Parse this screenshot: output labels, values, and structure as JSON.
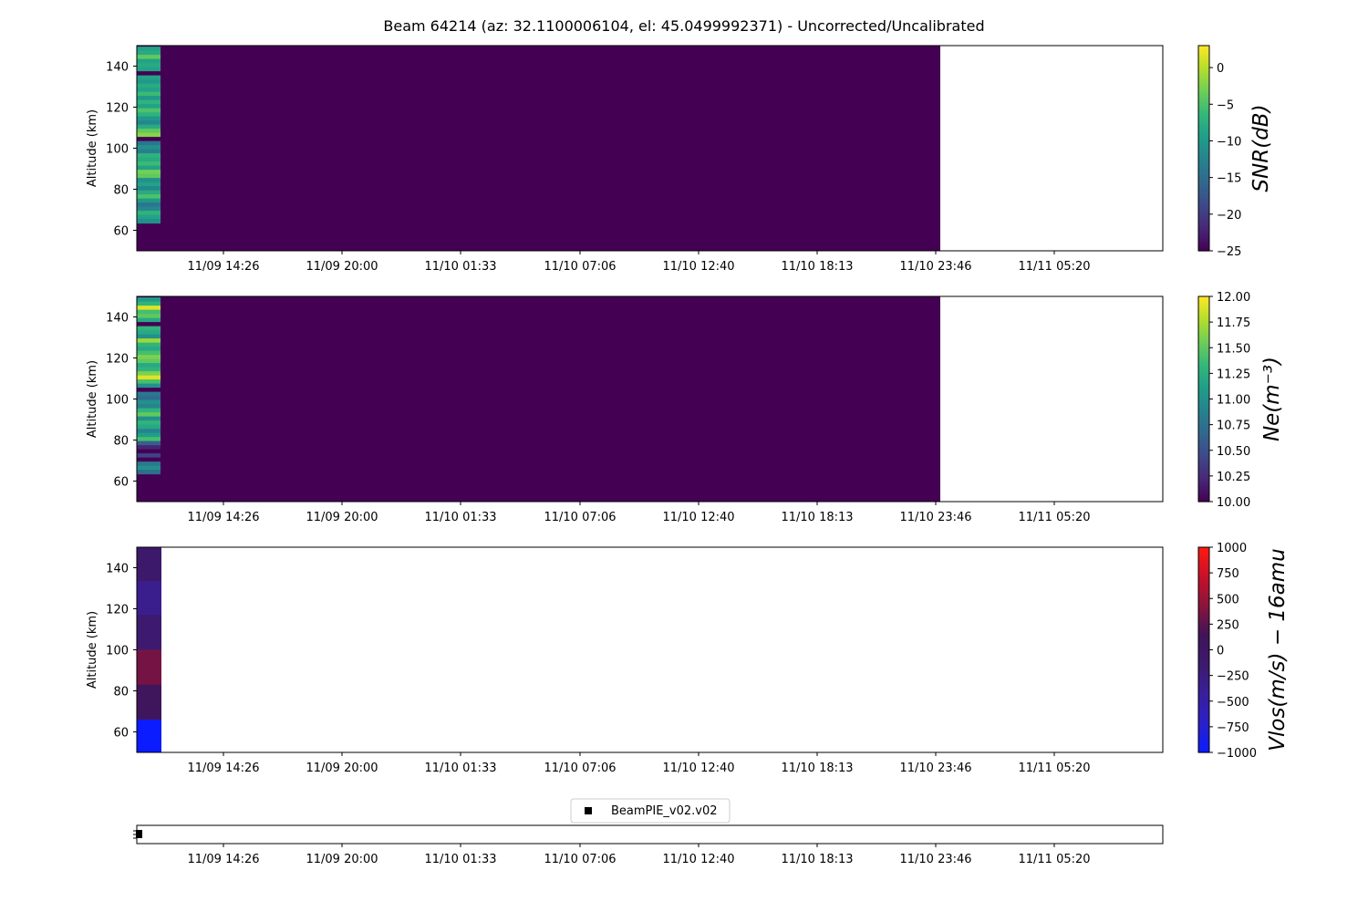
{
  "figure_title": "Beam 64214 (az: 32.1100006104, el: 45.0499992371) - Uncorrected/Uncalibrated",
  "colors": {
    "viridis": [
      "#440154",
      "#482878",
      "#3e4989",
      "#31688e",
      "#26828e",
      "#1f9e89",
      "#35b779",
      "#6ece58",
      "#b5de2b",
      "#fde725"
    ],
    "diverging_rb": [
      "#0b1cff",
      "#2a20c8",
      "#3a1f9a",
      "#3d1a6e",
      "#3f1458",
      "#8a143c",
      "#c8102a",
      "#ff1a10"
    ],
    "fill_zero": "#440154",
    "legend_marker": "#000000"
  },
  "chart_data": [
    {
      "type": "heatmap",
      "ylabel": "Altitude (km)",
      "ylim": [
        50,
        150
      ],
      "yticks": [
        60,
        80,
        100,
        120,
        140
      ],
      "xticks": [
        "11/09 14:26",
        "11/09 20:00",
        "11/10 01:33",
        "11/10 07:06",
        "11/10 12:40",
        "11/10 18:13",
        "11/10 23:46",
        "11/11 05:20"
      ],
      "colorbar": {
        "label": "SNR(dB)",
        "range": [
          -25,
          3
        ],
        "ticks": [
          0,
          -5,
          -10,
          -15,
          -20,
          -25
        ],
        "tick_labels": [
          "0",
          "−5",
          "−10",
          "−15",
          "−20",
          "−25"
        ],
        "colormap": "viridis"
      },
      "first_column_profile": {
        "altitude_km": [
          148.5,
          146.5,
          144.5,
          142.5,
          140.5,
          138.5,
          136.5,
          134.5,
          132.5,
          130.5,
          128.5,
          126.5,
          124.5,
          122.5,
          120.5,
          118.5,
          116.5,
          114.5,
          112.5,
          110.5,
          108.5,
          106.5,
          104.5,
          102.5,
          100.5,
          98.5,
          96.5,
          94.5,
          92.5,
          90.5,
          88.5,
          86.5,
          84.5,
          82.5,
          80.5,
          78.5,
          76.5,
          74.5,
          72.5,
          70.5,
          68.5,
          66.5,
          64.5
        ],
        "values": [
          -9,
          -8,
          -4,
          -9,
          -8,
          -9,
          -25,
          -9,
          -10,
          -8,
          -9,
          -6,
          -10,
          -7,
          -9,
          -5,
          -7,
          -10,
          -12,
          -8,
          -4,
          -2,
          -25,
          -14,
          -11,
          -13,
          -7,
          -8,
          -6,
          -9,
          -3,
          -4,
          -11,
          -9,
          -12,
          -8,
          -5,
          -10,
          -14,
          -12,
          -7,
          -9,
          -11
        ]
      },
      "fill_value": -25
    },
    {
      "type": "heatmap",
      "ylabel": "Altitude (km)",
      "ylim": [
        50,
        150
      ],
      "yticks": [
        60,
        80,
        100,
        120,
        140
      ],
      "xticks": [
        "11/09 14:26",
        "11/09 20:00",
        "11/10 01:33",
        "11/10 07:06",
        "11/10 12:40",
        "11/10 18:13",
        "11/10 23:46",
        "11/11 05:20"
      ],
      "colorbar": {
        "label": "Ne(m⁻³)",
        "range": [
          10,
          12
        ],
        "ticks": [
          10.0,
          10.25,
          10.5,
          10.75,
          11.0,
          11.25,
          11.5,
          11.75,
          12.0
        ],
        "tick_labels": [
          "10.00",
          "10.25",
          "10.50",
          "10.75",
          "11.00",
          "11.25",
          "11.50",
          "11.75",
          "12.00"
        ],
        "colormap": "viridis"
      },
      "first_column_profile": {
        "altitude_km": [
          148.5,
          146.5,
          144.5,
          142.5,
          140.5,
          138.5,
          136.5,
          134.5,
          132.5,
          130.5,
          128.5,
          126.5,
          124.5,
          122.5,
          120.5,
          118.5,
          116.5,
          114.5,
          112.5,
          110.5,
          108.5,
          106.5,
          104.5,
          102.5,
          100.5,
          98.5,
          96.5,
          94.5,
          92.5,
          90.5,
          88.5,
          86.5,
          84.5,
          82.5,
          80.5,
          78.5,
          76.5,
          74.5,
          72.5,
          70.5,
          68.5,
          66.5,
          64.5
        ],
        "values": [
          11.1,
          11.3,
          11.9,
          11.4,
          11.5,
          11.2,
          10.0,
          11.3,
          11.2,
          11.0,
          11.7,
          11.3,
          11.2,
          11.4,
          11.6,
          11.5,
          11.2,
          11.3,
          11.6,
          11.9,
          11.4,
          11.0,
          10.0,
          10.8,
          10.7,
          11.0,
          10.9,
          11.3,
          11.5,
          11.0,
          11.3,
          11.2,
          10.9,
          11.1,
          11.4,
          10.6,
          10.2,
          10.0,
          10.4,
          10.0,
          10.8,
          11.0,
          10.7
        ],
        "first_column_bottom_km": 63.5
      },
      "fill_value": 10.0
    },
    {
      "type": "heatmap",
      "ylabel": "Altitude (km)",
      "ylim": [
        50,
        150
      ],
      "yticks": [
        60,
        80,
        100,
        120,
        140
      ],
      "xticks": [
        "11/09 14:26",
        "11/09 20:00",
        "11/10 01:33",
        "11/10 07:06",
        "11/10 12:40",
        "11/10 18:13",
        "11/10 23:46",
        "11/11 05:20"
      ],
      "colorbar": {
        "label": "Vlos(m/s) − 16amu",
        "range": [
          -1000,
          1000
        ],
        "ticks": [
          1000,
          750,
          500,
          250,
          0,
          -250,
          -500,
          -750,
          -1000
        ],
        "tick_labels": [
          "1000",
          "750",
          "500",
          "250",
          "0",
          "−250",
          "−500",
          "−750",
          "−1000"
        ],
        "colormap": "diverging_rb"
      },
      "first_column_profile": {
        "altitude_bins_km": [
          [
            133.5,
            150
          ],
          [
            117,
            133.5
          ],
          [
            100,
            117
          ],
          [
            83,
            100
          ],
          [
            66,
            83
          ],
          [
            50,
            66
          ]
        ],
        "values": [
          -100,
          -350,
          -150,
          350,
          100,
          -1000
        ]
      }
    },
    {
      "type": "scatter",
      "legend": [
        "BeamPIE_v02.v02"
      ],
      "legend_loc": "upper center",
      "xticks": [
        "11/09 14:26",
        "11/09 20:00",
        "11/10 01:33",
        "11/10 07:06",
        "11/10 12:40",
        "11/10 18:13",
        "11/10 23:46",
        "11/11 05:20"
      ],
      "points": [
        {
          "x": "11/09 10:40",
          "y": 0
        }
      ]
    }
  ]
}
